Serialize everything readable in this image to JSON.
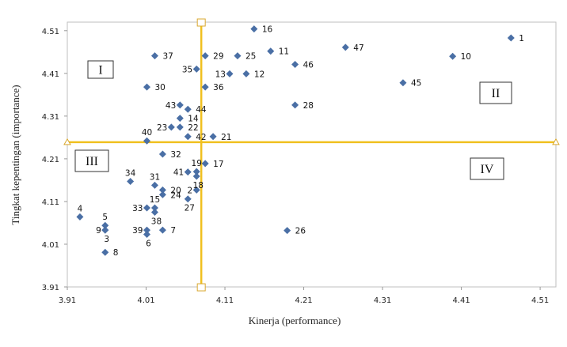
{
  "chart_data": {
    "type": "scatter",
    "title": "",
    "xlabel": "Kinerja (performance)",
    "ylabel": "Tingkat kepentingan (importance)",
    "xlim": [
      3.91,
      4.53
    ],
    "ylim": [
      3.91,
      4.53
    ],
    "xticks": [
      "3.91",
      "4.01",
      "4.11",
      "4.21",
      "4.31",
      "4.41",
      "4.51"
    ],
    "yticks": [
      "3.91",
      "4.01",
      "4.11",
      "4.21",
      "4.31",
      "4.41",
      "4.51"
    ],
    "grid": false,
    "marker_color": "#4a6fa5",
    "divider_color": "#f0c020",
    "divider_x": 4.08,
    "divider_y": 4.249,
    "quadrants": [
      "I",
      "II",
      "III",
      "IV"
    ],
    "points": [
      {
        "label": "1",
        "x": 4.473,
        "y": 4.493,
        "pos": "right"
      },
      {
        "label": "2",
        "x": 4.074,
        "y": 4.137,
        "pos": "left"
      },
      {
        "label": "3",
        "x": 3.958,
        "y": 4.043,
        "pos": "below"
      },
      {
        "label": "4",
        "x": 3.926,
        "y": 4.074,
        "pos": "above"
      },
      {
        "label": "5",
        "x": 3.958,
        "y": 4.054,
        "pos": "above"
      },
      {
        "label": "6",
        "x": 4.011,
        "y": 4.033,
        "pos": "below"
      },
      {
        "label": "7",
        "x": 4.031,
        "y": 4.043,
        "pos": "right"
      },
      {
        "label": "8",
        "x": 3.958,
        "y": 3.991,
        "pos": "right"
      },
      {
        "label": "9",
        "x": 3.958,
        "y": 4.043,
        "pos": "left"
      },
      {
        "label": "10",
        "x": 4.399,
        "y": 4.45,
        "pos": "right"
      },
      {
        "label": "11",
        "x": 4.168,
        "y": 4.462,
        "pos": "right"
      },
      {
        "label": "12",
        "x": 4.137,
        "y": 4.409,
        "pos": "right"
      },
      {
        "label": "13",
        "x": 4.116,
        "y": 4.409,
        "pos": "left"
      },
      {
        "label": "14",
        "x": 4.053,
        "y": 4.305,
        "pos": "right"
      },
      {
        "label": "15",
        "x": 4.021,
        "y": 4.095,
        "pos": "above"
      },
      {
        "label": "16",
        "x": 4.147,
        "y": 4.514,
        "pos": "right"
      },
      {
        "label": "17",
        "x": 4.085,
        "y": 4.199,
        "pos": "right"
      },
      {
        "label": "18",
        "x": 4.074,
        "y": 4.169,
        "pos": "below"
      },
      {
        "label": "19",
        "x": 4.074,
        "y": 4.18,
        "pos": "above"
      },
      {
        "label": "20",
        "x": 4.031,
        "y": 4.137,
        "pos": "right"
      },
      {
        "label": "21",
        "x": 4.095,
        "y": 4.262,
        "pos": "right"
      },
      {
        "label": "22",
        "x": 4.053,
        "y": 4.284,
        "pos": "right"
      },
      {
        "label": "23",
        "x": 4.042,
        "y": 4.284,
        "pos": "left"
      },
      {
        "label": "24",
        "x": 4.031,
        "y": 4.126,
        "pos": "right"
      },
      {
        "label": "25",
        "x": 4.126,
        "y": 4.451,
        "pos": "right"
      },
      {
        "label": "26",
        "x": 4.189,
        "y": 4.042,
        "pos": "right"
      },
      {
        "label": "27",
        "x": 4.063,
        "y": 4.116,
        "pos": "below"
      },
      {
        "label": "28",
        "x": 4.199,
        "y": 4.336,
        "pos": "right"
      },
      {
        "label": "29",
        "x": 4.085,
        "y": 4.451,
        "pos": "right"
      },
      {
        "label": "30",
        "x": 4.011,
        "y": 4.378,
        "pos": "right"
      },
      {
        "label": "31",
        "x": 4.021,
        "y": 4.148,
        "pos": "above"
      },
      {
        "label": "32",
        "x": 4.031,
        "y": 4.221,
        "pos": "right"
      },
      {
        "label": "33",
        "x": 4.011,
        "y": 4.095,
        "pos": "left"
      },
      {
        "label": "34",
        "x": 3.99,
        "y": 4.157,
        "pos": "above"
      },
      {
        "label": "35",
        "x": 4.074,
        "y": 4.42,
        "pos": "left"
      },
      {
        "label": "36",
        "x": 4.085,
        "y": 4.378,
        "pos": "right"
      },
      {
        "label": "37",
        "x": 4.021,
        "y": 4.451,
        "pos": "right"
      },
      {
        "label": "38",
        "x": 4.021,
        "y": 4.085,
        "pos": "below"
      },
      {
        "label": "39",
        "x": 4.011,
        "y": 4.043,
        "pos": "left"
      },
      {
        "label": "40",
        "x": 4.011,
        "y": 4.252,
        "pos": "above"
      },
      {
        "label": "41",
        "x": 4.063,
        "y": 4.179,
        "pos": "left"
      },
      {
        "label": "42",
        "x": 4.063,
        "y": 4.262,
        "pos": "right"
      },
      {
        "label": "43",
        "x": 4.053,
        "y": 4.336,
        "pos": "left"
      },
      {
        "label": "44",
        "x": 4.063,
        "y": 4.326,
        "pos": "right"
      },
      {
        "label": "45",
        "x": 4.336,
        "y": 4.388,
        "pos": "right"
      },
      {
        "label": "46",
        "x": 4.199,
        "y": 4.431,
        "pos": "right"
      },
      {
        "label": "47",
        "x": 4.263,
        "y": 4.471,
        "pos": "right"
      }
    ]
  }
}
